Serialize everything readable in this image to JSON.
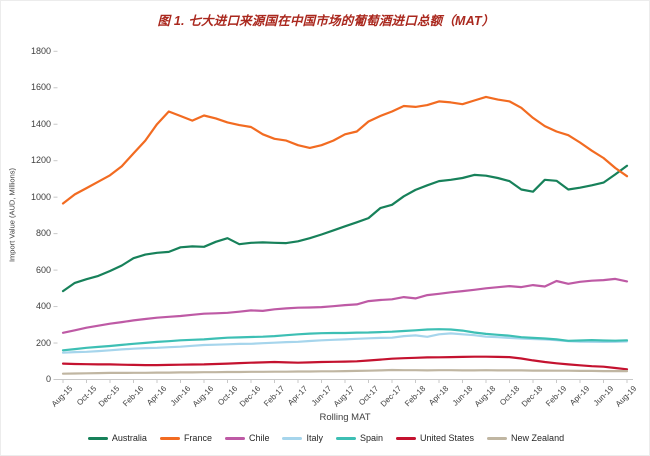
{
  "title": "图 1. 七大进口来源国在中国市场的葡萄酒进口总额（MAT）",
  "chart_data": {
    "type": "line",
    "title": "图 1. 七大进口来源国在中国市场的葡萄酒进口总额（MAT）",
    "xlabel": "Rolling MAT",
    "ylabel": "Import Value (AUD, Millions)",
    "ylim": [
      0,
      1800
    ],
    "y_ticks": [
      0,
      200,
      400,
      600,
      800,
      1000,
      1200,
      1400,
      1600,
      1800
    ],
    "grid": "none",
    "legend_position": "bottom-center",
    "x_tick_labels": [
      "Aug-15",
      "Oct-15",
      "Dec-15",
      "Feb-16",
      "Apr-16",
      "Jun-16",
      "Aug-16",
      "Oct-16",
      "Dec-16",
      "Feb-17",
      "Apr-17",
      "Jun-17",
      "Aug-17",
      "Oct-17",
      "Dec-17",
      "Feb-18",
      "Apr-18",
      "Jun-18",
      "Aug-18",
      "Oct-18",
      "Dec-18",
      "Feb-19",
      "Apr-19",
      "Jun-19",
      "Aug-19"
    ],
    "points_per_series": 49,
    "x_label_every_n_points": 2,
    "series": [
      {
        "name": "Australia",
        "color": "#17815A",
        "values": [
          485,
          530,
          550,
          568,
          595,
          625,
          665,
          685,
          695,
          700,
          725,
          730,
          728,
          755,
          775,
          742,
          750,
          752,
          750,
          748,
          758,
          775,
          795,
          818,
          840,
          862,
          885,
          940,
          958,
          1005,
          1040,
          1065,
          1088,
          1095,
          1105,
          1122,
          1118,
          1105,
          1088,
          1042,
          1030,
          1095,
          1090,
          1042,
          1052,
          1065,
          1080,
          1125,
          1172
        ]
      },
      {
        "name": "France",
        "color": "#F26B21",
        "values": [
          965,
          1015,
          1050,
          1085,
          1120,
          1170,
          1240,
          1310,
          1400,
          1470,
          1445,
          1420,
          1448,
          1432,
          1410,
          1395,
          1385,
          1345,
          1320,
          1310,
          1285,
          1270,
          1285,
          1310,
          1345,
          1360,
          1415,
          1445,
          1470,
          1500,
          1495,
          1505,
          1525,
          1520,
          1510,
          1530,
          1550,
          1535,
          1525,
          1490,
          1435,
          1390,
          1360,
          1340,
          1300,
          1255,
          1215,
          1160,
          1115
        ]
      },
      {
        "name": "Chile",
        "color": "#BE5AA5",
        "values": [
          256,
          270,
          284,
          295,
          306,
          315,
          324,
          332,
          339,
          344,
          348,
          355,
          361,
          363,
          366,
          372,
          379,
          376,
          385,
          390,
          394,
          395,
          397,
          402,
          408,
          412,
          430,
          436,
          440,
          452,
          445,
          463,
          470,
          478,
          485,
          492,
          500,
          506,
          512,
          507,
          518,
          510,
          540,
          525,
          536,
          542,
          545,
          552,
          538
        ]
      },
      {
        "name": "Italy",
        "color": "#A6D5EC",
        "values": [
          147,
          150,
          152,
          156,
          160,
          165,
          169,
          172,
          174,
          177,
          180,
          185,
          189,
          191,
          193,
          195,
          196,
          199,
          202,
          205,
          207,
          211,
          215,
          218,
          220,
          223,
          226,
          228,
          229,
          238,
          242,
          234,
          248,
          253,
          248,
          243,
          235,
          232,
          228,
          225,
          222,
          220,
          216,
          210,
          208,
          207,
          206,
          207,
          209
        ]
      },
      {
        "name": "Spain",
        "color": "#3DBFB4",
        "values": [
          160,
          167,
          174,
          179,
          184,
          190,
          196,
          201,
          206,
          210,
          215,
          218,
          220,
          225,
          229,
          231,
          233,
          235,
          238,
          243,
          248,
          252,
          254,
          255,
          255,
          257,
          258,
          260,
          262,
          266,
          270,
          274,
          276,
          274,
          268,
          258,
          250,
          245,
          240,
          232,
          228,
          225,
          220,
          212,
          214,
          216,
          214,
          213,
          215
        ]
      },
      {
        "name": "United States",
        "color": "#C4122F",
        "values": [
          87,
          85,
          84,
          83,
          83,
          81,
          80,
          79,
          79,
          80,
          81,
          82,
          83,
          85,
          87,
          90,
          92,
          94,
          96,
          94,
          92,
          94,
          96,
          97,
          98,
          100,
          104,
          109,
          114,
          117,
          119,
          121,
          122,
          123,
          124,
          125,
          125,
          124,
          123,
          115,
          105,
          96,
          89,
          83,
          78,
          73,
          70,
          63,
          56
        ]
      },
      {
        "name": "New Zealand",
        "color": "#C0B6A2",
        "values": [
          32,
          33,
          34,
          35,
          36,
          36,
          37,
          37,
          38,
          38,
          39,
          39,
          40,
          40,
          41,
          41,
          42,
          42,
          43,
          43,
          44,
          44,
          45,
          45,
          46,
          47,
          48,
          50,
          52,
          51,
          51,
          50,
          51,
          51,
          50,
          50,
          51,
          50,
          50,
          50,
          49,
          49,
          48,
          48,
          47,
          47,
          46,
          46,
          46
        ]
      }
    ]
  }
}
